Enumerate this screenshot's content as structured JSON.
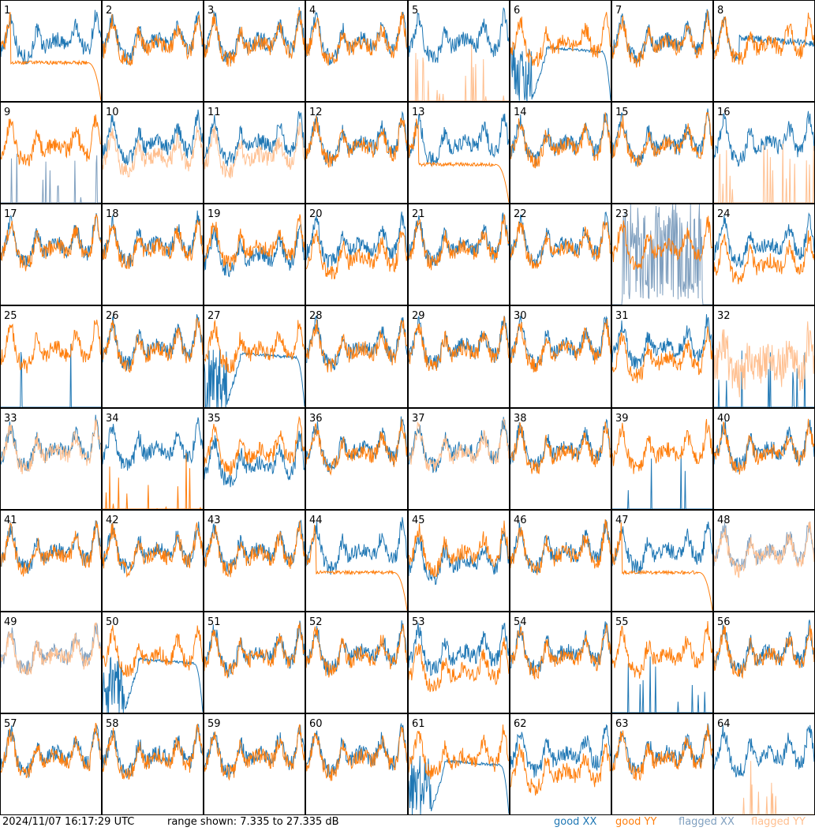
{
  "chart_data": {
    "type": "line",
    "layout": "grid of 64 panels, 8 columns x 8 rows, one per antenna",
    "panel_labels": [
      "1",
      "2",
      "3",
      "4",
      "5",
      "6",
      "7",
      "8",
      "9",
      "10",
      "11",
      "12",
      "13",
      "14",
      "15",
      "16",
      "17",
      "18",
      "19",
      "20",
      "21",
      "22",
      "23",
      "24",
      "25",
      "26",
      "27",
      "28",
      "29",
      "30",
      "31",
      "32",
      "33",
      "34",
      "35",
      "36",
      "37",
      "38",
      "39",
      "40",
      "41",
      "42",
      "43",
      "44",
      "45",
      "46",
      "47",
      "48",
      "49",
      "50",
      "51",
      "52",
      "53",
      "54",
      "55",
      "56",
      "57",
      "58",
      "59",
      "60",
      "61",
      "62",
      "63",
      "64"
    ],
    "ylim": [
      7.335,
      27.335
    ],
    "y_unit": "dB",
    "series_legend": [
      {
        "name": "good XX",
        "color": "#1f77b4"
      },
      {
        "name": "good YY",
        "color": "#ff7f0e"
      },
      {
        "name": "flagged XX",
        "color": "#7f9fbf"
      },
      {
        "name": "flagged YY",
        "color": "#ffbf8f"
      }
    ],
    "panels": {
      "1": {
        "xx": "good",
        "yy": "good",
        "yy_shape": "dropoff"
      },
      "5": {
        "xx": "good",
        "yy": "flagged",
        "yy_shape": "spikes"
      },
      "6": {
        "xx": "good",
        "yy": "good",
        "xx_shape": "decay"
      },
      "8": {
        "xx": "good",
        "yy": "good",
        "xx_shape": "flat"
      },
      "9": {
        "xx": "flagged",
        "yy": "good",
        "xx_shape": "spikes"
      },
      "10": {
        "xx": "good",
        "yy": "flagged",
        "yy_offset": -2
      },
      "11": {
        "xx": "good",
        "yy": "flagged",
        "yy_offset": -2
      },
      "13": {
        "xx": "good",
        "yy": "good",
        "yy_shape": "dropoff"
      },
      "16": {
        "xx": "good",
        "yy": "flagged",
        "yy_shape": "spikes"
      },
      "19": {
        "xx": "good",
        "yy": "good",
        "xx_offset": -2
      },
      "20": {
        "xx": "good",
        "yy": "good",
        "yy_offset": -2
      },
      "23": {
        "xx": "flagged",
        "yy": "good",
        "xx_shape": "block"
      },
      "24": {
        "xx": "good",
        "yy": "good",
        "yy_offset": -3
      },
      "25": {
        "xx": "good",
        "yy": "good",
        "xx_shape": "spikes_sparse"
      },
      "27": {
        "xx": "good",
        "yy": "good",
        "xx_shape": "decay"
      },
      "31": {
        "xx": "good",
        "yy": "good",
        "yy_offset": -2
      },
      "32": {
        "xx": "good",
        "yy": "flagged",
        "yy_shape": "noisy",
        "xx_shape": "spikes_sparse"
      },
      "33": {
        "xx": "good",
        "yy": "flagged"
      },
      "34": {
        "xx": "good",
        "yy": "good",
        "yy_shape": "spikes"
      },
      "35": {
        "xx": "good",
        "yy": "good",
        "xx_offset": -3
      },
      "37": {
        "xx": "good",
        "yy": "flagged"
      },
      "39": {
        "xx": "good",
        "yy": "good",
        "xx_shape": "spikes_sparse"
      },
      "44": {
        "xx": "good",
        "yy": "good",
        "yy_shape": "dropoff"
      },
      "45": {
        "xx": "good",
        "yy": "good",
        "xx_offset": -2
      },
      "47": {
        "xx": "good",
        "yy": "good",
        "yy_shape": "dropoff"
      },
      "48": {
        "xx": "flagged",
        "yy": "flagged"
      },
      "49": {
        "xx": "flagged",
        "yy": "flagged"
      },
      "50": {
        "xx": "good",
        "yy": "good",
        "xx_shape": "decay"
      },
      "53": {
        "xx": "good",
        "yy": "good",
        "yy_offset": -3
      },
      "55": {
        "xx": "good",
        "yy": "good",
        "xx_shape": "spikes"
      },
      "61": {
        "xx": "good",
        "yy": "good",
        "xx_shape": "decay"
      },
      "62": {
        "xx": "good",
        "yy": "good",
        "yy_offset": -3
      },
      "64": {
        "xx": "good",
        "yy": "flagged",
        "yy_shape": "spikes"
      }
    }
  },
  "footer": {
    "timestamp": "2024/11/07 16:17:29 UTC",
    "range_text": "range shown: 7.335 to 27.335 dB",
    "legend_good_xx": "good XX",
    "legend_good_yy": "good YY",
    "legend_flagged_xx": "flagged XX",
    "legend_flagged_yy": "flagged YY"
  }
}
